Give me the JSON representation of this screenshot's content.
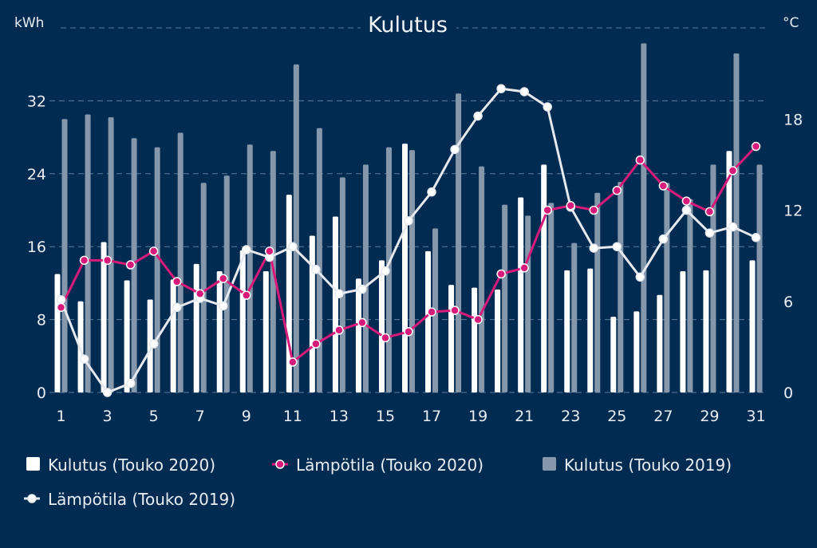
{
  "chart_data": {
    "type": "bar",
    "title": "Kulutus",
    "y_left_unit": "kWh",
    "y_right_unit": "°C",
    "y_left_range": [
      0,
      40
    ],
    "y_left_ticks": [
      0,
      8,
      16,
      24,
      32
    ],
    "y_right_range": [
      0,
      24
    ],
    "y_right_ticks": [
      0,
      6,
      12,
      18
    ],
    "x": [
      1,
      2,
      3,
      4,
      5,
      6,
      7,
      8,
      9,
      10,
      11,
      12,
      13,
      14,
      15,
      16,
      17,
      18,
      19,
      20,
      21,
      22,
      23,
      24,
      25,
      26,
      27,
      28,
      29,
      30,
      31
    ],
    "x_tick_labels": [
      "1",
      "3",
      "5",
      "7",
      "9",
      "11",
      "13",
      "15",
      "17",
      "19",
      "21",
      "23",
      "25",
      "27",
      "29",
      "31"
    ],
    "grid": true,
    "legend_position": "bottom",
    "series": [
      {
        "name": "Kulutus (Touko 2020)",
        "type": "bar",
        "axis": "left",
        "color": "#ffffff",
        "values": [
          13.0,
          10.0,
          16.5,
          12.3,
          10.2,
          12.4,
          14.1,
          13.3,
          15.6,
          13.3,
          21.7,
          17.2,
          19.3,
          12.5,
          14.5,
          27.3,
          15.5,
          11.8,
          11.5,
          11.3,
          21.4,
          25.0,
          13.4,
          13.6,
          8.3,
          8.9,
          10.7,
          13.3,
          13.4,
          26.5,
          14.5
        ]
      },
      {
        "name": "Lämpötila (Touko 2020)",
        "type": "line",
        "axis": "right",
        "color": "#d81b7b",
        "values": [
          5.6,
          8.7,
          8.7,
          8.4,
          9.3,
          7.3,
          6.5,
          7.5,
          6.4,
          9.3,
          2.0,
          3.2,
          4.1,
          4.6,
          3.6,
          4.0,
          5.3,
          5.4,
          4.8,
          7.8,
          8.2,
          12.0,
          12.3,
          12.0,
          13.3,
          15.3,
          13.6,
          12.6,
          11.9,
          14.6,
          16.2
        ]
      },
      {
        "name": "Kulutus (Touko 2019)",
        "type": "bar",
        "axis": "left",
        "color": "#8597ab",
        "values": [
          30.0,
          30.5,
          30.2,
          27.9,
          26.9,
          28.5,
          23.0,
          23.8,
          27.2,
          26.5,
          36.0,
          29.0,
          23.6,
          25.0,
          26.9,
          26.6,
          18.0,
          32.8,
          24.8,
          20.6,
          19.4,
          20.8,
          16.4,
          21.9,
          23.1,
          38.3,
          23.0,
          21.2,
          25.0,
          37.2,
          25.0
        ]
      },
      {
        "name": "Lämpötila (Touko 2019)",
        "type": "line",
        "axis": "right",
        "color": "#e6e9ee",
        "values": [
          6.1,
          2.2,
          0.0,
          0.6,
          3.2,
          5.6,
          6.2,
          5.7,
          9.4,
          8.9,
          9.6,
          8.1,
          6.5,
          6.8,
          8.0,
          11.3,
          13.2,
          16.0,
          18.2,
          20.0,
          19.8,
          18.8,
          12.2,
          9.5,
          9.6,
          7.6,
          10.1,
          12.0,
          10.5,
          10.9,
          10.2
        ]
      }
    ]
  }
}
